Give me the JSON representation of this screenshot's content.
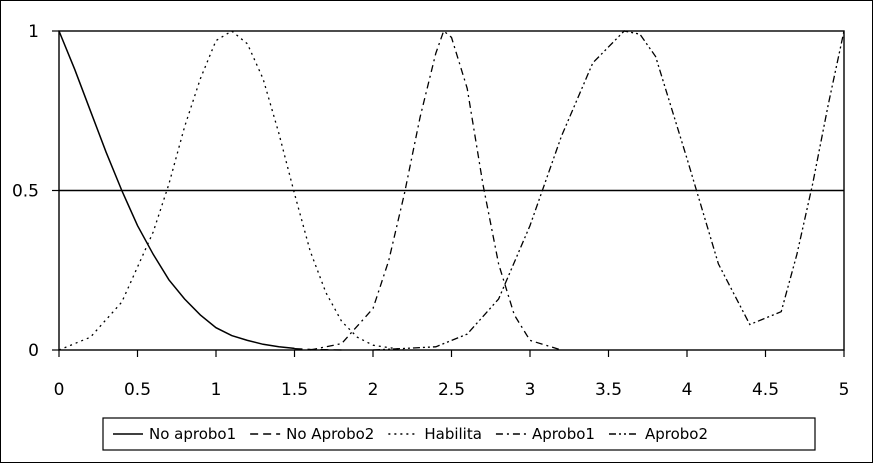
{
  "chart_data": {
    "type": "line",
    "title": "",
    "xlabel": "",
    "ylabel": "",
    "xlim": [
      0,
      5
    ],
    "ylim": [
      0,
      1
    ],
    "xticks": [
      "0",
      "0.5",
      "1",
      "1.5",
      "2",
      "2.5",
      "3",
      "3.5",
      "4",
      "4.5",
      "5"
    ],
    "yticks": [
      "0",
      "0.5",
      "1"
    ],
    "grid": "horizontal",
    "reference_line_y": 0.5,
    "legend_position": "bottom",
    "series": [
      {
        "name": "No aprobo1",
        "style": "solid",
        "x": [
          0,
          0.1,
          0.2,
          0.3,
          0.4,
          0.5,
          0.6,
          0.7,
          0.8,
          0.9,
          1.0,
          1.1,
          1.2,
          1.3,
          1.4,
          1.5
        ],
        "y": [
          1.0,
          0.88,
          0.75,
          0.62,
          0.5,
          0.39,
          0.3,
          0.22,
          0.16,
          0.11,
          0.07,
          0.045,
          0.03,
          0.018,
          0.01,
          0.005
        ]
      },
      {
        "name": "No Aprobo2",
        "style": "dashed",
        "x": [
          1.5,
          1.6,
          1.7,
          1.8
        ],
        "y": [
          0.004,
          0.002,
          0.001,
          0.0
        ]
      },
      {
        "name": "Habilita",
        "style": "dotted",
        "x": [
          0.0,
          0.2,
          0.4,
          0.6,
          0.7,
          0.8,
          0.9,
          1.0,
          1.1,
          1.2,
          1.3,
          1.4,
          1.5,
          1.6,
          1.7,
          1.8,
          1.9,
          2.0,
          2.2
        ],
        "y": [
          0.0,
          0.04,
          0.15,
          0.37,
          0.52,
          0.7,
          0.85,
          0.97,
          1.0,
          0.96,
          0.85,
          0.68,
          0.49,
          0.31,
          0.18,
          0.09,
          0.04,
          0.015,
          0.0
        ]
      },
      {
        "name": "Aprobo1",
        "style": "dashdot",
        "x": [
          1.6,
          1.8,
          2.0,
          2.1,
          2.2,
          2.3,
          2.4,
          2.45,
          2.5,
          2.6,
          2.7,
          2.8,
          2.9,
          3.0,
          3.2
        ],
        "y": [
          0.0,
          0.02,
          0.13,
          0.28,
          0.49,
          0.73,
          0.93,
          1.0,
          0.98,
          0.82,
          0.52,
          0.27,
          0.11,
          0.03,
          0.0
        ]
      },
      {
        "name": "Aprobo2",
        "style": "dashdotdot",
        "x": [
          2.0,
          2.4,
          2.6,
          2.8,
          3.0,
          3.2,
          3.4,
          3.6,
          3.7,
          3.8,
          4.0,
          4.2,
          4.4,
          4.6,
          4.7,
          4.8,
          4.9,
          5.0
        ],
        "y": [
          0.0,
          0.01,
          0.05,
          0.16,
          0.39,
          0.67,
          0.9,
          1.0,
          0.99,
          0.92,
          0.6,
          0.27,
          0.08,
          0.12,
          0.3,
          0.52,
          0.77,
          1.0
        ]
      }
    ]
  }
}
